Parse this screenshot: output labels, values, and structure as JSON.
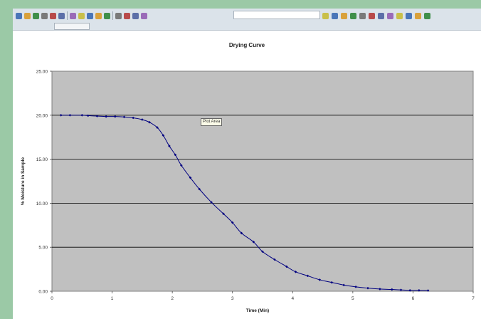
{
  "app": {
    "toolbar_icons": [
      "new-icon",
      "open-icon",
      "save-icon",
      "print-icon",
      "preview-icon",
      "spell-icon",
      "cut-icon",
      "copy-icon",
      "paste-icon",
      "undo-icon",
      "redo-icon",
      "chart-icon",
      "sort-icon",
      "zoom-icon",
      "help-icon",
      "bold-icon",
      "italic-icon",
      "underline-icon",
      "align-left-icon",
      "align-center-icon",
      "align-right-icon",
      "merge-icon",
      "currency-icon",
      "percent-icon",
      "border-icon",
      "fill-color-icon",
      "font-color-icon"
    ]
  },
  "tooltip": {
    "text": "Plot Area"
  },
  "colors": {
    "plot_bg": "#c0c0c0",
    "series": "#000080",
    "grid": "#000000"
  },
  "chart_data": {
    "type": "scatter",
    "title": "Drying Curve",
    "xlabel": "Time (Min)",
    "ylabel": "% Moisture in Sample",
    "xlim": [
      0,
      7
    ],
    "ylim": [
      0,
      25
    ],
    "x_ticks": [
      "0",
      "1",
      "2",
      "3",
      "4",
      "5",
      "6",
      "7"
    ],
    "y_ticks": [
      "0.00",
      "5.00",
      "10.00",
      "15.00",
      "20.00",
      "25.00"
    ],
    "grid": "horizontal major",
    "legend": "none",
    "series": [
      {
        "line": "smoothed",
        "marker": "diamond",
        "points": [
          [
            0.15,
            20.0
          ],
          [
            0.3,
            20.0
          ],
          [
            0.5,
            20.0
          ],
          [
            0.6,
            19.95
          ],
          [
            0.75,
            19.9
          ],
          [
            0.9,
            19.85
          ],
          [
            1.05,
            19.85
          ],
          [
            1.2,
            19.8
          ],
          [
            1.35,
            19.7
          ],
          [
            1.5,
            19.5
          ],
          [
            1.62,
            19.2
          ],
          [
            1.75,
            18.6
          ],
          [
            1.85,
            17.7
          ],
          [
            1.95,
            16.5
          ],
          [
            2.05,
            15.5
          ],
          [
            2.15,
            14.3
          ],
          [
            2.3,
            12.9
          ],
          [
            2.45,
            11.6
          ],
          [
            2.65,
            10.1
          ],
          [
            2.85,
            8.8
          ],
          [
            3.0,
            7.8
          ],
          [
            3.15,
            6.6
          ],
          [
            3.35,
            5.6
          ],
          [
            3.5,
            4.5
          ],
          [
            3.7,
            3.6
          ],
          [
            3.9,
            2.8
          ],
          [
            4.05,
            2.2
          ],
          [
            4.25,
            1.75
          ],
          [
            4.45,
            1.3
          ],
          [
            4.65,
            1.0
          ],
          [
            4.85,
            0.7
          ],
          [
            5.05,
            0.5
          ],
          [
            5.25,
            0.35
          ],
          [
            5.45,
            0.25
          ],
          [
            5.65,
            0.2
          ],
          [
            5.8,
            0.15
          ],
          [
            5.95,
            0.1
          ],
          [
            6.1,
            0.1
          ],
          [
            6.25,
            0.08
          ]
        ]
      }
    ]
  }
}
